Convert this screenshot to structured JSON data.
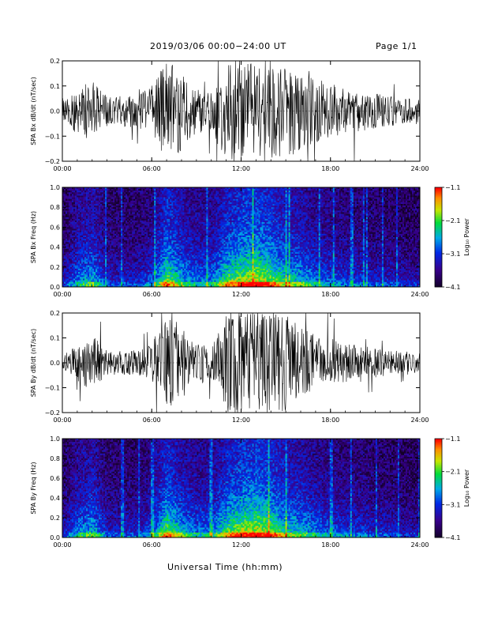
{
  "header": {
    "title": "2019/03/06  00:00−24:00 UT",
    "page": "Page 1/1"
  },
  "xaxis_label": "Universal Time (hh:mm)",
  "x_ticks": [
    "00:00",
    "06:00",
    "12:00",
    "18:00",
    "24:00"
  ],
  "colorbar": {
    "label": "Log₁₀ Power",
    "ticks": [
      "−1.1",
      "−2.1",
      "−3.1",
      "−4.1"
    ],
    "range": [
      -4.1,
      -1.1
    ]
  },
  "chart_data": [
    {
      "type": "line",
      "ylabel": "SPA Bx dB/dt (nT/sec)",
      "xlim": [
        0,
        24
      ],
      "ylim": [
        -0.2,
        0.2
      ],
      "y_ticks": [
        "0.2",
        "0.1",
        "0.0",
        "−0.1",
        "−0.2"
      ],
      "x_hours": [
        0,
        1,
        2,
        3,
        4,
        5,
        6,
        7,
        8,
        9,
        10,
        11,
        12,
        13,
        14,
        15,
        16,
        17,
        18,
        19,
        20,
        21,
        22,
        23,
        24
      ],
      "envelope": [
        0.05,
        0.09,
        0.12,
        0.06,
        0.06,
        0.07,
        0.1,
        0.2,
        0.16,
        0.09,
        0.08,
        0.2,
        0.2,
        0.2,
        0.2,
        0.2,
        0.15,
        0.13,
        0.11,
        0.09,
        0.08,
        0.07,
        0.06,
        0.05,
        0.05
      ]
    },
    {
      "type": "heatmap",
      "ylabel": "SPA Bx Freq (Hz)",
      "xlim": [
        0,
        24
      ],
      "ylim": [
        0.0,
        1.0
      ],
      "y_ticks": [
        "1.0",
        "0.8",
        "0.6",
        "0.4",
        "0.2",
        "0.0"
      ],
      "x_hours": [
        0,
        1,
        2,
        3,
        4,
        5,
        6,
        7,
        8,
        9,
        10,
        11,
        12,
        13,
        14,
        15,
        16,
        17,
        18,
        19,
        20,
        21,
        22,
        23,
        24
      ],
      "intensity": [
        0.25,
        0.45,
        0.55,
        0.3,
        0.3,
        0.3,
        0.4,
        0.75,
        0.55,
        0.45,
        0.45,
        0.7,
        0.8,
        0.85,
        0.75,
        0.6,
        0.55,
        0.45,
        0.4,
        0.35,
        0.35,
        0.3,
        0.3,
        0.25,
        0.25
      ],
      "color_range": [
        -4.1,
        -1.1
      ]
    },
    {
      "type": "line",
      "ylabel": "SPA By dB/dt (nT/sec)",
      "xlim": [
        0,
        24
      ],
      "ylim": [
        -0.2,
        0.2
      ],
      "y_ticks": [
        "0.2",
        "0.1",
        "0.0",
        "−0.1",
        "−0.2"
      ],
      "x_hours": [
        0,
        1,
        2,
        3,
        4,
        5,
        6,
        7,
        8,
        9,
        10,
        11,
        12,
        13,
        14,
        15,
        16,
        17,
        18,
        19,
        20,
        21,
        22,
        23,
        24
      ],
      "envelope": [
        0.03,
        0.07,
        0.12,
        0.05,
        0.05,
        0.05,
        0.08,
        0.2,
        0.15,
        0.08,
        0.07,
        0.2,
        0.2,
        0.2,
        0.2,
        0.2,
        0.14,
        0.12,
        0.1,
        0.08,
        0.07,
        0.06,
        0.05,
        0.05,
        0.04
      ]
    },
    {
      "type": "heatmap",
      "ylabel": "SPA By Freq (Hz)",
      "xlim": [
        0,
        24
      ],
      "ylim": [
        0.0,
        1.0
      ],
      "y_ticks": [
        "1.0",
        "0.8",
        "0.6",
        "0.4",
        "0.2",
        "0.0"
      ],
      "x_hours": [
        0,
        1,
        2,
        3,
        4,
        5,
        6,
        7,
        8,
        9,
        10,
        11,
        12,
        13,
        14,
        15,
        16,
        17,
        18,
        19,
        20,
        21,
        22,
        23,
        24
      ],
      "intensity": [
        0.25,
        0.45,
        0.55,
        0.3,
        0.3,
        0.3,
        0.4,
        0.75,
        0.55,
        0.45,
        0.45,
        0.7,
        0.8,
        0.85,
        0.75,
        0.6,
        0.55,
        0.45,
        0.4,
        0.35,
        0.35,
        0.3,
        0.3,
        0.25,
        0.25
      ],
      "color_range": [
        -4.1,
        -1.1
      ]
    }
  ]
}
